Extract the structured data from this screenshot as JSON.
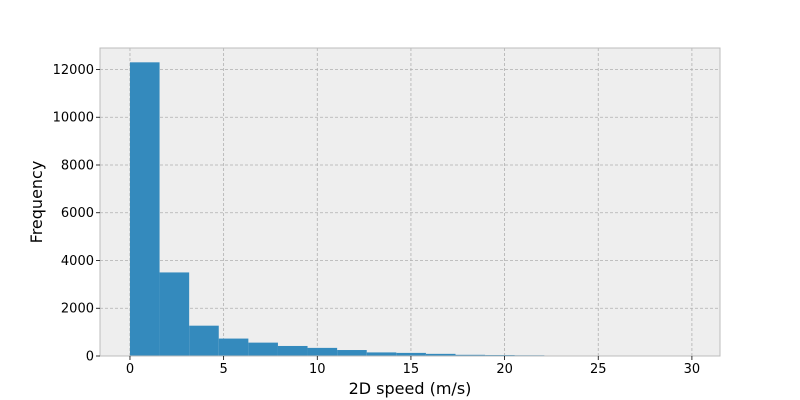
{
  "chart_data": {
    "type": "bar",
    "title": "",
    "xlabel": "2D speed (m/s)",
    "ylabel": "Frequency",
    "xlim": [
      -1.6,
      31.5
    ],
    "ylim": [
      0,
      12900
    ],
    "xticks": [
      0,
      5,
      10,
      15,
      20,
      25,
      30
    ],
    "yticks": [
      0,
      2000,
      4000,
      6000,
      8000,
      10000,
      12000
    ],
    "grid": true,
    "colors": {
      "bar": "#348abd",
      "plot_background": "#eeeeee",
      "grid": "#b0b0b0",
      "frame": "#bcbcbc"
    },
    "bins": [
      {
        "x0": 0.0,
        "x1": 1.58,
        "count": 12300
      },
      {
        "x0": 1.58,
        "x1": 3.16,
        "count": 3500
      },
      {
        "x0": 3.16,
        "x1": 4.74,
        "count": 1270
      },
      {
        "x0": 4.74,
        "x1": 6.32,
        "count": 730
      },
      {
        "x0": 6.32,
        "x1": 7.9,
        "count": 560
      },
      {
        "x0": 7.9,
        "x1": 9.48,
        "count": 420
      },
      {
        "x0": 9.48,
        "x1": 11.06,
        "count": 340
      },
      {
        "x0": 11.06,
        "x1": 12.64,
        "count": 250
      },
      {
        "x0": 12.64,
        "x1": 14.22,
        "count": 150
      },
      {
        "x0": 14.22,
        "x1": 15.8,
        "count": 130
      },
      {
        "x0": 15.8,
        "x1": 17.38,
        "count": 90
      },
      {
        "x0": 17.38,
        "x1": 18.96,
        "count": 50
      },
      {
        "x0": 18.96,
        "x1": 20.54,
        "count": 40
      },
      {
        "x0": 20.54,
        "x1": 22.12,
        "count": 30
      },
      {
        "x0": 22.12,
        "x1": 23.7,
        "count": 6
      },
      {
        "x0": 23.7,
        "x1": 25.28,
        "count": 4
      },
      {
        "x0": 25.28,
        "x1": 26.86,
        "count": 3
      },
      {
        "x0": 26.86,
        "x1": 28.44,
        "count": 2
      },
      {
        "x0": 28.44,
        "x1": 30.02,
        "count": 2
      }
    ]
  }
}
